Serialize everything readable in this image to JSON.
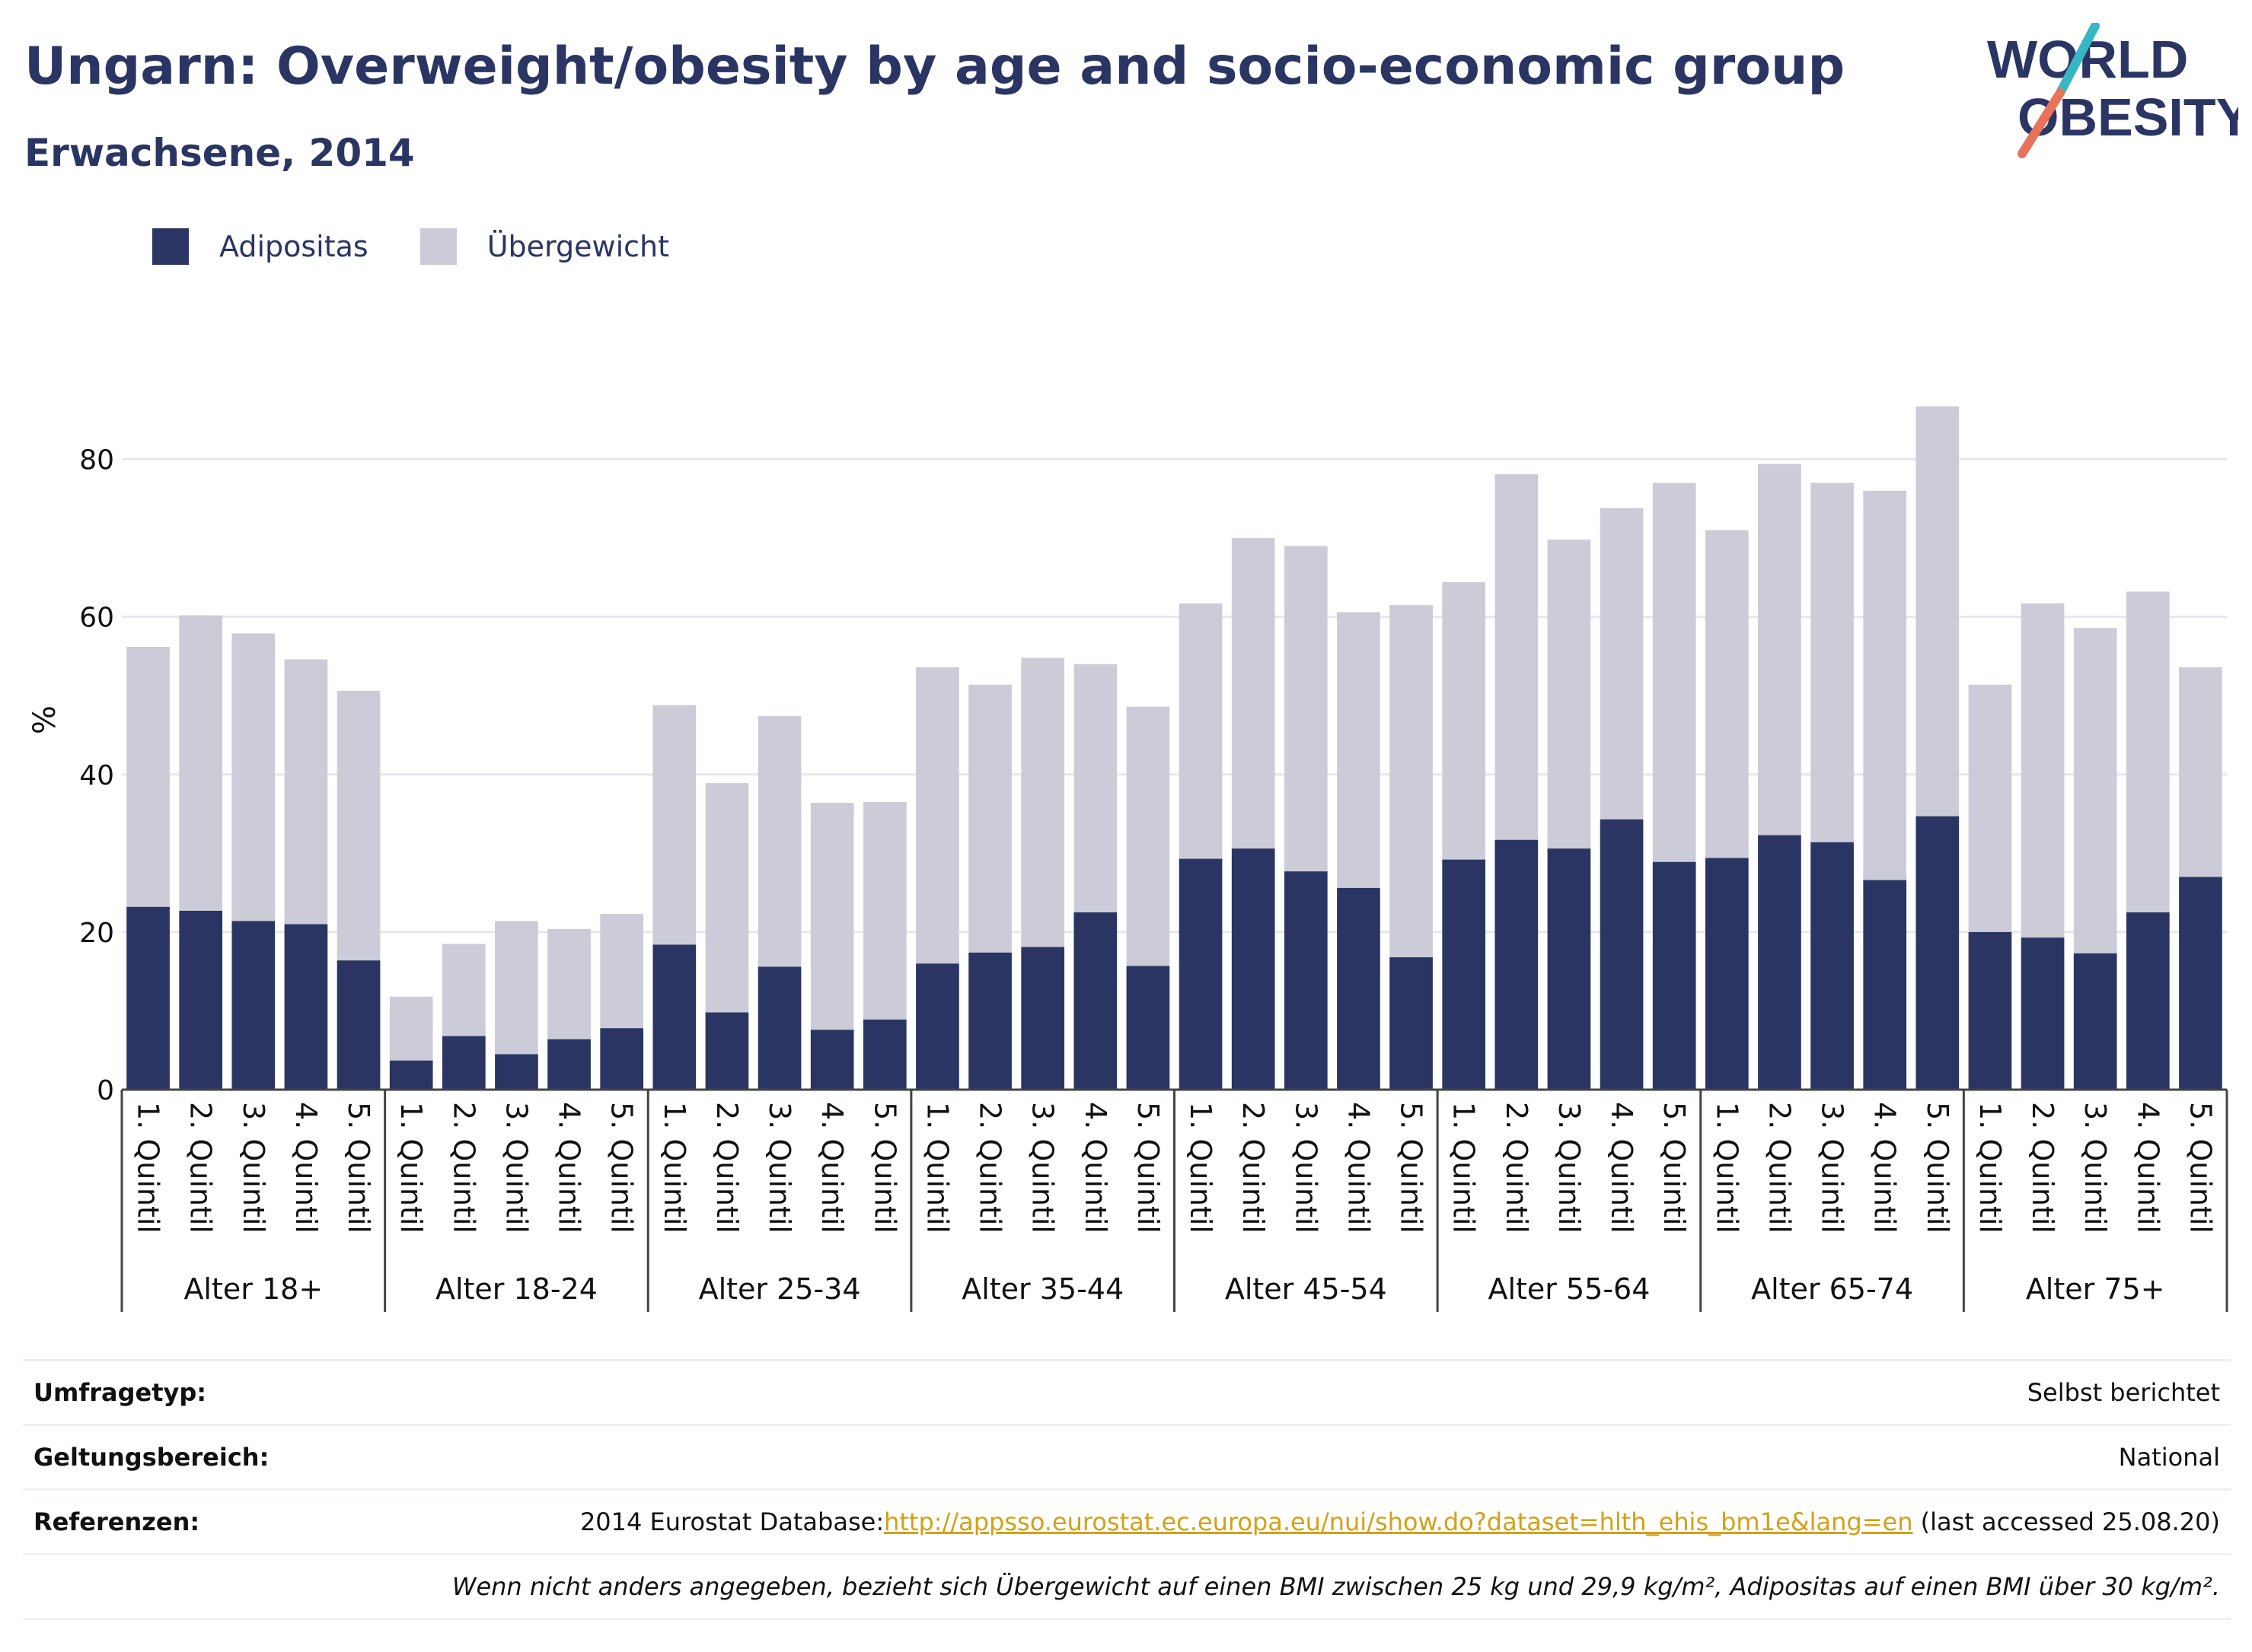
{
  "header": {
    "title": "Ungarn: Overweight/obesity by age and socio-economic group",
    "subtitle": "Erwachsene, 2014"
  },
  "logo": {
    "line1": "WORLD",
    "line2": "OBESITY",
    "icon": "world-obesity-logo"
  },
  "colors": {
    "obese": "#2a3563",
    "overweight": "#cbccd8",
    "accent": "#d4a017",
    "text": "#2a3563"
  },
  "legend": [
    {
      "label": "Adipositas",
      "color": "#2a3563"
    },
    {
      "label": "Übergewicht",
      "color": "#cbccd8"
    }
  ],
  "chart_data": {
    "type": "bar",
    "stacked": true,
    "ylabel": "%",
    "ylim": [
      0,
      90
    ],
    "yticks": [
      0,
      20,
      40,
      60,
      80
    ],
    "grid": true,
    "legend_position": "top-left",
    "groups": [
      "Alter 18+",
      "Alter 18-24",
      "Alter 25-34",
      "Alter 35-44",
      "Alter 45-54",
      "Alter 55-64",
      "Alter 65-74",
      "Alter 75+"
    ],
    "categories": [
      "1. Quintil",
      "2. Quintil",
      "3. Quintil",
      "4. Quintil",
      "5. Quintil"
    ],
    "series": [
      {
        "name": "Adipositas",
        "color": "#2a3563",
        "values": [
          [
            23.2,
            22.7,
            21.4,
            21.0,
            16.4
          ],
          [
            3.7,
            6.8,
            4.5,
            6.4,
            7.8
          ],
          [
            18.4,
            9.8,
            15.6,
            7.6,
            8.9
          ],
          [
            16.0,
            17.4,
            18.1,
            22.5,
            15.7
          ],
          [
            29.3,
            30.6,
            27.7,
            25.6,
            16.8
          ],
          [
            29.2,
            31.7,
            30.6,
            34.3,
            28.9
          ],
          [
            29.4,
            32.3,
            31.4,
            26.6,
            34.7
          ],
          [
            20.0,
            19.3,
            17.3,
            22.5,
            27.0
          ]
        ]
      },
      {
        "name": "Übergewicht",
        "color": "#cbccd8",
        "values": [
          [
            33.0,
            37.5,
            36.5,
            33.6,
            34.2
          ],
          [
            8.1,
            11.7,
            16.9,
            14.0,
            14.5
          ],
          [
            30.4,
            29.1,
            31.8,
            28.8,
            27.6
          ],
          [
            37.6,
            34.0,
            36.7,
            31.5,
            32.9
          ],
          [
            32.4,
            39.4,
            41.3,
            35.0,
            44.7
          ],
          [
            35.2,
            46.4,
            39.2,
            39.5,
            48.1
          ],
          [
            41.6,
            47.1,
            45.6,
            49.4,
            52.0
          ],
          [
            31.4,
            42.4,
            41.3,
            40.7,
            26.6
          ]
        ]
      }
    ]
  },
  "info": {
    "survey_label": "Umfragetyp:",
    "survey_value": "Selbst berichtet",
    "scope_label": "Geltungsbereich:",
    "scope_value": "National",
    "refs_label": "Referenzen:",
    "refs_prefix": "2014 Eurostat Database:",
    "refs_link": "http://appsso.eurostat.ec.europa.eu/nui/show.do?dataset=hlth_ehis_bm1e&lang=en",
    "refs_suffix": " (last accessed 25.08.20)",
    "note": "Wenn nicht anders angegeben, bezieht sich Übergewicht auf einen BMI zwischen 25 kg und 29,9 kg/m², Adipositas auf einen BMI über 30 kg/m²."
  }
}
